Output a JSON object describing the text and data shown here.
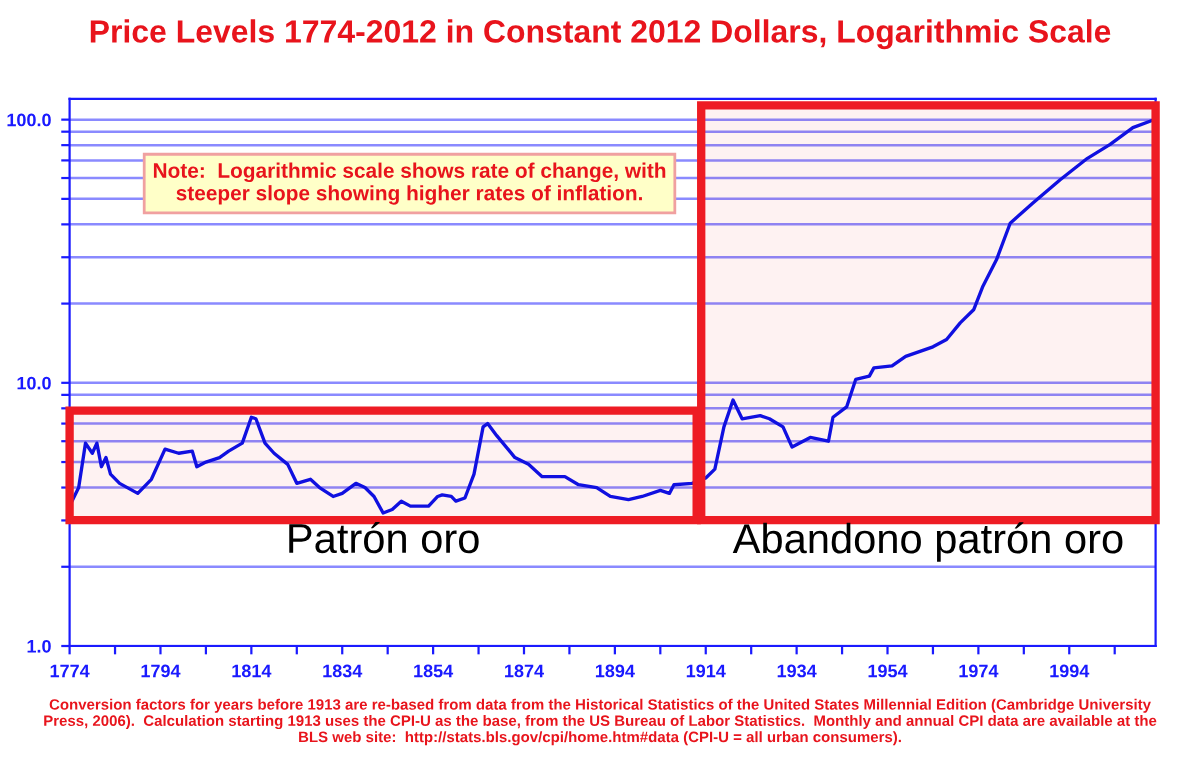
{
  "chart_data": {
    "type": "line",
    "title": "Price Levels 1774-2012 in Constant 2012 Dollars, Logarithmic Scale",
    "series": [
      {
        "color": "#1010e0",
        "x": [
          1774,
          1776,
          1777.5,
          1779,
          1780,
          1781,
          1782,
          1783,
          1785,
          1789,
          1792,
          1795,
          1798,
          1801,
          1802,
          1804,
          1807,
          1809,
          1812,
          1814,
          1815,
          1817,
          1819,
          1822,
          1824,
          1827,
          1829,
          1832,
          1834,
          1837,
          1839,
          1841,
          1843,
          1845,
          1847,
          1849,
          1853,
          1855,
          1856,
          1858,
          1859,
          1861,
          1863,
          1865,
          1866,
          1868,
          1872,
          1875,
          1878,
          1883,
          1886,
          1890,
          1893,
          1897,
          1900,
          1904,
          1906,
          1907,
          1911,
          1914,
          1916,
          1918,
          1920,
          1922,
          1926,
          1928,
          1931,
          1933,
          1937,
          1941,
          1942,
          1945,
          1947,
          1950,
          1951,
          1955,
          1958,
          1964,
          1967,
          1970,
          1973,
          1975,
          1978,
          1981,
          1986,
          1992,
          1998,
          2003,
          2008,
          2012
        ],
        "values": [
          3.4,
          4.0,
          5.9,
          5.4,
          5.9,
          4.8,
          5.2,
          4.5,
          4.15,
          3.8,
          4.3,
          5.6,
          5.4,
          5.5,
          4.8,
          5.0,
          5.2,
          5.5,
          5.9,
          7.4,
          7.3,
          5.9,
          5.4,
          4.9,
          4.15,
          4.3,
          4.0,
          3.7,
          3.8,
          4.15,
          4.0,
          3.7,
          3.2,
          3.3,
          3.55,
          3.4,
          3.4,
          3.7,
          3.75,
          3.7,
          3.55,
          3.65,
          4.5,
          6.8,
          7.0,
          6.3,
          5.2,
          4.9,
          4.4,
          4.4,
          4.1,
          4.0,
          3.7,
          3.6,
          3.7,
          3.9,
          3.8,
          4.1,
          4.15,
          4.35,
          4.7,
          6.8,
          8.6,
          7.3,
          7.5,
          7.3,
          6.8,
          5.7,
          6.2,
          6.0,
          7.4,
          8.1,
          10.3,
          10.6,
          11.4,
          11.6,
          12.6,
          13.7,
          14.6,
          16.9,
          19.0,
          23.3,
          29.4,
          40.4,
          48.2,
          59.1,
          71.3,
          80.5,
          93.3,
          99
        ]
      }
    ],
    "log": "y",
    "xlim": [
      1774,
      2013
    ],
    "ylim": [
      1,
      120
    ],
    "xticks": [
      1774,
      {
        "value": 1784,
        "label": null
      },
      1794,
      {
        "value": 1804,
        "label": null
      },
      1814,
      {
        "value": 1824,
        "label": null
      },
      1834,
      {
        "value": 1844,
        "label": null
      },
      1854,
      {
        "value": 1864,
        "label": null
      },
      1874,
      {
        "value": 1884,
        "label": null
      },
      1894,
      {
        "value": 1904,
        "label": null
      },
      1914,
      {
        "value": 1924,
        "label": null
      },
      1934,
      {
        "value": 1944,
        "label": null
      },
      1954,
      {
        "value": 1964,
        "label": null
      },
      1974,
      {
        "value": 1984,
        "label": null
      },
      1994,
      {
        "value": 2004,
        "label": null
      }
    ],
    "yticks": [
      {
        "value": 1,
        "label": "1.0"
      },
      {
        "value": 2,
        "label": null
      },
      {
        "value": 3,
        "label": null
      },
      {
        "value": 4,
        "label": null
      },
      {
        "value": 5,
        "label": null
      },
      {
        "value": 6,
        "label": null
      },
      {
        "value": 7,
        "label": null
      },
      {
        "value": 8,
        "label": null
      },
      {
        "value": 9,
        "label": null
      },
      {
        "value": 10,
        "label": "10.0"
      },
      {
        "value": 20,
        "label": null
      },
      {
        "value": 30,
        "label": null
      },
      {
        "value": 40,
        "label": null
      },
      {
        "value": 50,
        "label": null
      },
      {
        "value": 60,
        "label": null
      },
      {
        "value": 70,
        "label": null
      },
      {
        "value": 80,
        "label": null
      },
      {
        "value": 90,
        "label": null
      },
      {
        "value": 100,
        "label": "100.0"
      }
    ],
    "grid": "y",
    "marker": "none",
    "line_style": "solid",
    "bands": [
      {
        "axis": "x",
        "from": 1774,
        "to": 1912,
        "label": "Patrón oro",
        "color": "#ee1c24"
      },
      {
        "axis": "x",
        "from": 1913,
        "to": 2013,
        "label": "Abandono patrón oro",
        "color": "#ee1c24"
      }
    ],
    "annotations": [
      "Note:  Logarithmic scale shows rate of change, with\nsteeper slope showing higher rates of inflation.",
      "Conversion factors for years before 1913 are re-based from data from the Historical Statistics of the United States Millennial Edition (Cambridge University\nPress, 2006).  Calculation starting 1913 uses the CPI-U as the base, from the US Bureau of Labor Statistics.  Monthly and annual CPI data are available at the\nBLS web site:  http://stats.bls.gov/cpi/home.htm#data (CPI-U = all urban consumers)."
    ]
  }
}
